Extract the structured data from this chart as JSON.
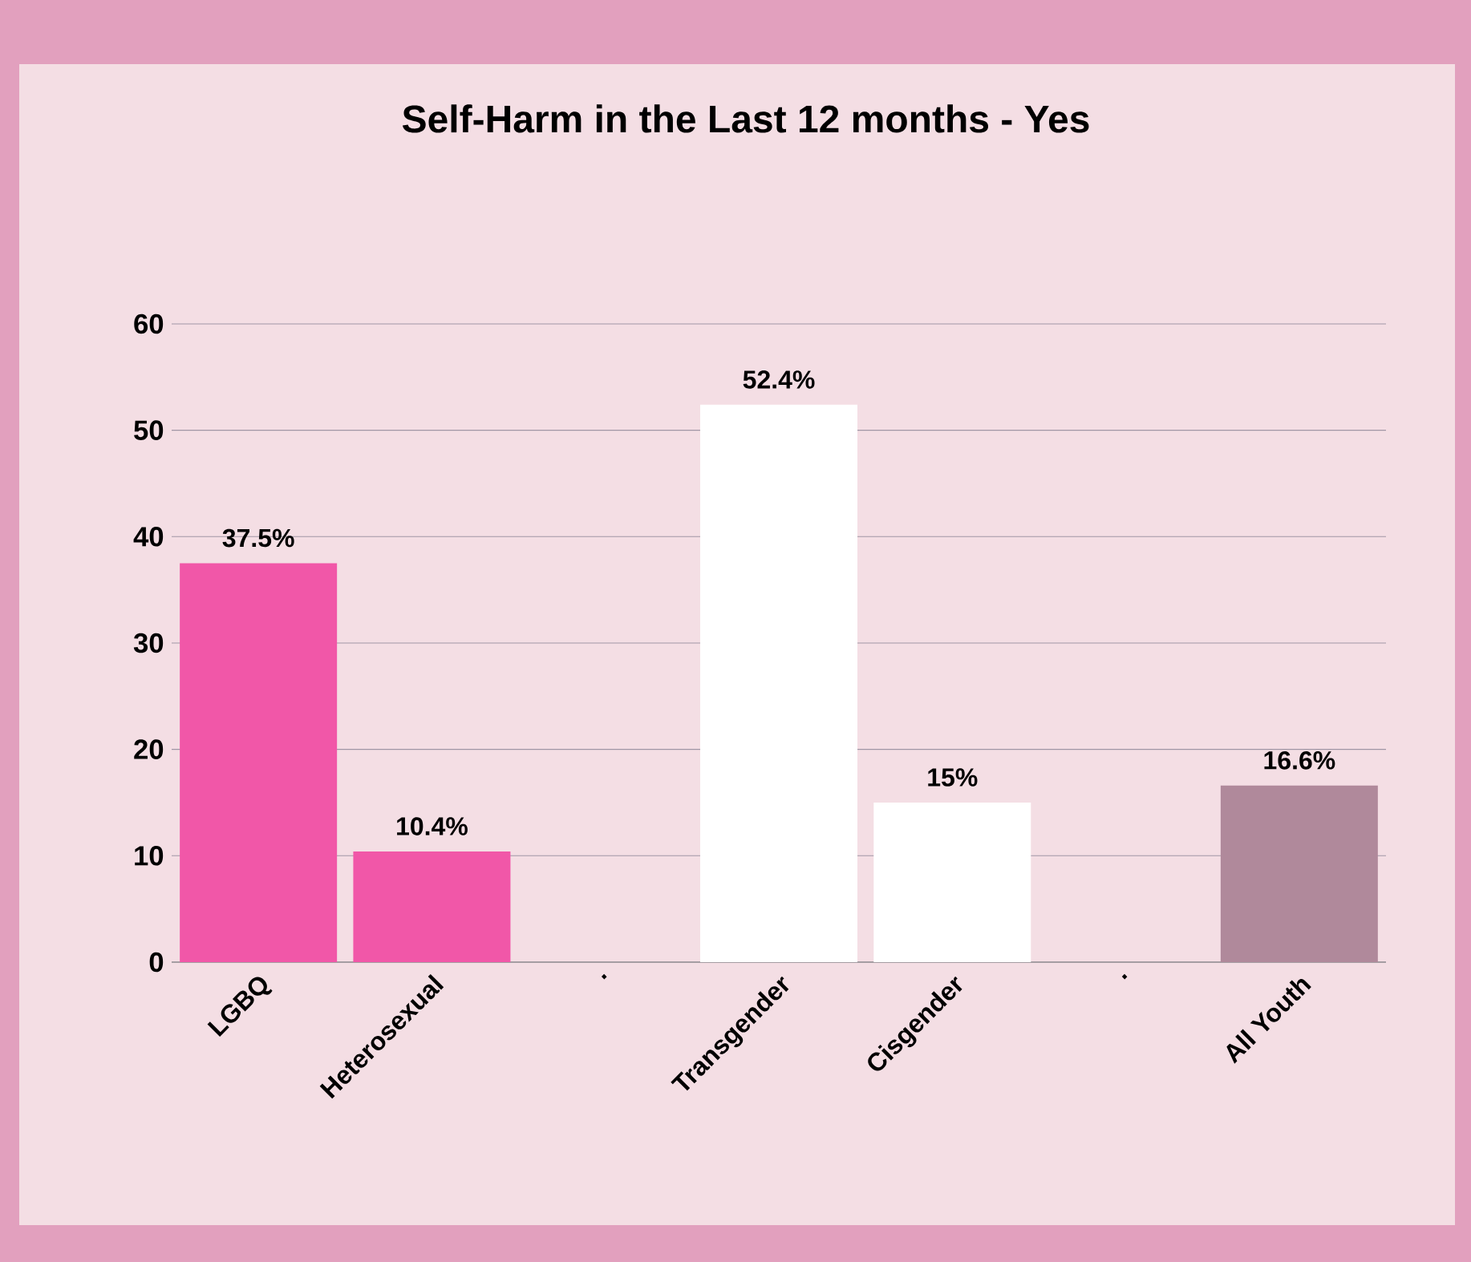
{
  "chart_data": {
    "type": "bar",
    "title": "Self-Harm in the Last 12 months - Yes",
    "categories": [
      "LGBQ",
      "Heterosexual",
      ".",
      "Transgender",
      "Cisgender",
      ".",
      "All Youth"
    ],
    "values": [
      37.5,
      10.4,
      null,
      52.4,
      15,
      null,
      16.6
    ],
    "colors": [
      "#f157a8",
      "#f157a8",
      null,
      "#ffffff",
      "#ffffff",
      null,
      "#b0899b"
    ],
    "value_labels": [
      "37.5%",
      "10.4%",
      null,
      "52.4%",
      "15%",
      null,
      "16.6%"
    ],
    "ylim": [
      0,
      60
    ],
    "yticks": [
      0,
      10,
      20,
      30,
      40,
      50,
      60
    ],
    "grid": "y"
  }
}
